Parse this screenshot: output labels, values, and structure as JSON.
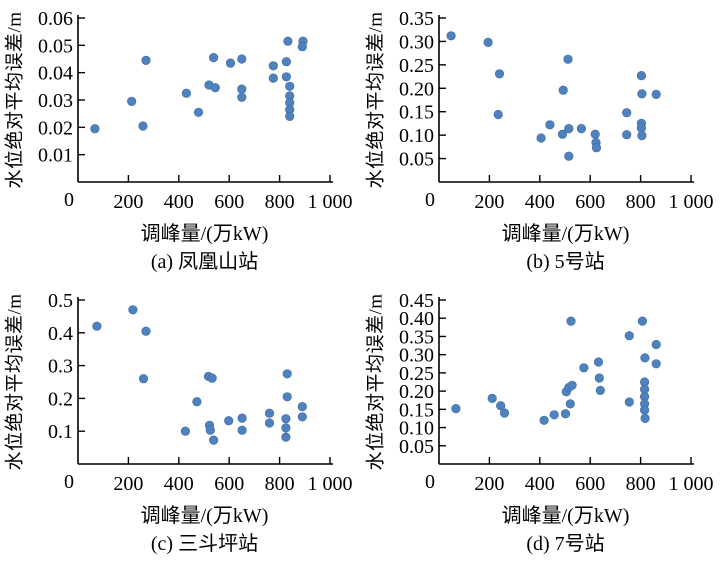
{
  "figure": {
    "shared_xlabel": "调峰量/(万kW)",
    "shared_ylabel": "水位绝对平均误差/m",
    "point_color": "#4f81bd",
    "axis_color": "#000000"
  },
  "chart_data": [
    {
      "type": "scatter",
      "caption": "(a) 凤凰山站",
      "xlabel": "调峰量/(万kW)",
      "ylabel": "水位绝对平均误差/m",
      "xlim": [
        0,
        1000
      ],
      "ylim": [
        0,
        0.06
      ],
      "xticks": [
        200,
        400,
        600,
        800,
        1000
      ],
      "xtick_labels": [
        "200",
        "400",
        "600",
        "800",
        "1 000"
      ],
      "origin_label": "0",
      "yticks": [
        0.01,
        0.02,
        0.03,
        0.04,
        0.05,
        0.06
      ],
      "ytick_labels": [
        "0.01",
        "0.02",
        "0.03",
        "0.04",
        "0.05",
        "0.06"
      ],
      "grid": false,
      "legend": "none",
      "points": [
        [
          67,
          0.0195
        ],
        [
          213,
          0.0295
        ],
        [
          258,
          0.0205
        ],
        [
          270,
          0.0445
        ],
        [
          430,
          0.0325
        ],
        [
          478,
          0.0255
        ],
        [
          520,
          0.0355
        ],
        [
          545,
          0.0345
        ],
        [
          538,
          0.0455
        ],
        [
          605,
          0.0435
        ],
        [
          650,
          0.045
        ],
        [
          650,
          0.034
        ],
        [
          650,
          0.031
        ],
        [
          775,
          0.0425
        ],
        [
          775,
          0.038
        ],
        [
          827,
          0.044
        ],
        [
          827,
          0.0385
        ],
        [
          833,
          0.0515
        ],
        [
          840,
          0.035
        ],
        [
          840,
          0.0315
        ],
        [
          840,
          0.029
        ],
        [
          840,
          0.0265
        ],
        [
          840,
          0.024
        ],
        [
          893,
          0.0515
        ],
        [
          890,
          0.0495
        ]
      ]
    },
    {
      "type": "scatter",
      "caption": "(b) 5号站",
      "xlabel": "调峰量/(万kW)",
      "ylabel": "水位绝对平均误差/m",
      "xlim": [
        0,
        1000
      ],
      "ylim": [
        0,
        0.35
      ],
      "xticks": [
        200,
        400,
        600,
        800,
        1000
      ],
      "xtick_labels": [
        "200",
        "400",
        "600",
        "800",
        "1 000"
      ],
      "origin_label": "0",
      "yticks": [
        0.05,
        0.1,
        0.15,
        0.2,
        0.25,
        0.3,
        0.35
      ],
      "ytick_labels": [
        "0.05",
        "0.10",
        "0.15",
        "0.20",
        "0.25",
        "0.30",
        "0.35"
      ],
      "grid": false,
      "legend": "none",
      "points": [
        [
          48,
          0.312
        ],
        [
          195,
          0.298
        ],
        [
          240,
          0.231
        ],
        [
          235,
          0.144
        ],
        [
          405,
          0.094
        ],
        [
          440,
          0.122
        ],
        [
          490,
          0.102
        ],
        [
          493,
          0.196
        ],
        [
          512,
          0.262
        ],
        [
          515,
          0.114
        ],
        [
          515,
          0.055
        ],
        [
          565,
          0.114
        ],
        [
          620,
          0.102
        ],
        [
          623,
          0.084
        ],
        [
          625,
          0.073
        ],
        [
          745,
          0.148
        ],
        [
          745,
          0.101
        ],
        [
          803,
          0.227
        ],
        [
          805,
          0.188
        ],
        [
          803,
          0.125
        ],
        [
          803,
          0.115
        ],
        [
          805,
          0.099
        ],
        [
          862,
          0.187
        ]
      ]
    },
    {
      "type": "scatter",
      "caption": "(c) 三斗坪站",
      "xlabel": "调峰量/(万kW)",
      "ylabel": "水位绝对平均误差/m",
      "xlim": [
        0,
        1000
      ],
      "ylim": [
        0,
        0.5
      ],
      "xticks": [
        200,
        400,
        600,
        800,
        1000
      ],
      "xtick_labels": [
        "200",
        "400",
        "600",
        "800",
        "1 000"
      ],
      "origin_label": "0",
      "yticks": [
        0.1,
        0.2,
        0.3,
        0.4,
        0.5
      ],
      "ytick_labels": [
        "0.1",
        "0.2",
        "0.3",
        "0.4",
        "0.5"
      ],
      "grid": false,
      "legend": "none",
      "points": [
        [
          75,
          0.42
        ],
        [
          218,
          0.47
        ],
        [
          270,
          0.405
        ],
        [
          260,
          0.26
        ],
        [
          426,
          0.1
        ],
        [
          472,
          0.19
        ],
        [
          518,
          0.267
        ],
        [
          532,
          0.262
        ],
        [
          522,
          0.118
        ],
        [
          525,
          0.103
        ],
        [
          538,
          0.073
        ],
        [
          598,
          0.132
        ],
        [
          651,
          0.14
        ],
        [
          651,
          0.103
        ],
        [
          760,
          0.155
        ],
        [
          760,
          0.125
        ],
        [
          825,
          0.138
        ],
        [
          825,
          0.11
        ],
        [
          825,
          0.082
        ],
        [
          830,
          0.275
        ],
        [
          830,
          0.205
        ],
        [
          890,
          0.175
        ],
        [
          890,
          0.144
        ]
      ]
    },
    {
      "type": "scatter",
      "caption": "(d) 7号站",
      "xlabel": "调峰量/(万kW)",
      "ylabel": "水位绝对平均误差/m",
      "xlim": [
        0,
        1000
      ],
      "ylim": [
        0,
        0.45
      ],
      "xticks": [
        200,
        400,
        600,
        800,
        1000
      ],
      "xtick_labels": [
        "200",
        "400",
        "600",
        "800",
        "1 000"
      ],
      "origin_label": "0",
      "yticks": [
        0.05,
        0.1,
        0.15,
        0.2,
        0.25,
        0.3,
        0.35,
        0.4,
        0.45
      ],
      "ytick_labels": [
        "0.05",
        "0.10",
        "0.15",
        "0.20",
        "0.25",
        "0.30",
        "0.35",
        "0.40",
        "0.45"
      ],
      "grid": false,
      "legend": "none",
      "points": [
        [
          67,
          0.152
        ],
        [
          211,
          0.18
        ],
        [
          245,
          0.16
        ],
        [
          260,
          0.14
        ],
        [
          417,
          0.12
        ],
        [
          457,
          0.135
        ],
        [
          502,
          0.138
        ],
        [
          505,
          0.198
        ],
        [
          515,
          0.21
        ],
        [
          521,
          0.165
        ],
        [
          528,
          0.216
        ],
        [
          524,
          0.392
        ],
        [
          575,
          0.264
        ],
        [
          633,
          0.28
        ],
        [
          636,
          0.236
        ],
        [
          640,
          0.202
        ],
        [
          755,
          0.352
        ],
        [
          755,
          0.17
        ],
        [
          807,
          0.392
        ],
        [
          817,
          0.291
        ],
        [
          816,
          0.225
        ],
        [
          816,
          0.205
        ],
        [
          816,
          0.185
        ],
        [
          816,
          0.165
        ],
        [
          816,
          0.148
        ],
        [
          818,
          0.125
        ],
        [
          862,
          0.328
        ],
        [
          862,
          0.275
        ]
      ]
    }
  ]
}
